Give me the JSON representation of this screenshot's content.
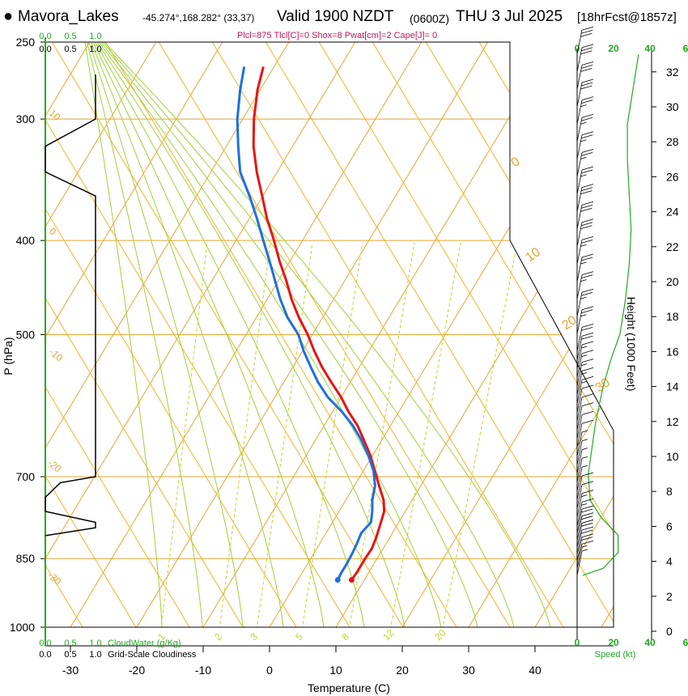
{
  "header": {
    "site": "Mavora_Lakes",
    "coords": "-45.274°,168.282° (33,37)",
    "valid": "Valid 1900 NZDT",
    "valid_utc": "(0600Z)",
    "valid_day": "THU 3 Jul 2025",
    "forecast": "[18hrFcst@1857z]",
    "params": "Plcl=875 Tlcl[C]=0 Shox=8 Pwat[cm]=2 Cape[J]= 0"
  },
  "colors": {
    "temperature": "#e81414",
    "dewpoint": "#1f6fe0",
    "isotherm": "#e6a532",
    "dry_adiabat": "#f0b428",
    "moist_adiabat": "#9fd23a",
    "mixing_ratio": "#bcd62b",
    "cloud_water": "#22aa22",
    "cloudiness": "#000000",
    "height_profile": "#000000",
    "wind_speed": "#22aa22"
  },
  "chart_data": [
    {
      "type": "line",
      "title": "Skew-T log-P sounding",
      "xlabel": "Temperature (C)",
      "ylabel": "P (hPa)",
      "x_ticks": [
        -30,
        -20,
        -10,
        0,
        10,
        20,
        30,
        40
      ],
      "y_ticks": [
        250,
        300,
        400,
        500,
        700,
        850,
        1000
      ],
      "xlim": [
        -34,
        46
      ],
      "ylim": [
        1000,
        250
      ],
      "y_scale": "log",
      "grid": true,
      "isotherm_labels": [
        "0",
        "10",
        "20",
        "30",
        "-10",
        "-20",
        "-30",
        "10",
        "0"
      ],
      "mixing_ratio_labels": [
        "1",
        "2",
        "3",
        "5",
        "8",
        "12",
        "20"
      ],
      "series": [
        {
          "name": "Temperature",
          "points": [
            {
              "p": 894,
              "t": 8.1
            },
            {
              "p": 875,
              "t": 8.2
            },
            {
              "p": 850,
              "t": 8.2
            },
            {
              "p": 830,
              "t": 8.3
            },
            {
              "p": 810,
              "t": 8.0
            },
            {
              "p": 780,
              "t": 7.3
            },
            {
              "p": 760,
              "t": 6.8
            },
            {
              "p": 740,
              "t": 5.7
            },
            {
              "p": 715,
              "t": 3.7
            },
            {
              "p": 690,
              "t": 1.7
            },
            {
              "p": 665,
              "t": -0.4
            },
            {
              "p": 640,
              "t": -2.9
            },
            {
              "p": 620,
              "t": -5.0
            },
            {
              "p": 600,
              "t": -7.6
            },
            {
              "p": 580,
              "t": -10.0
            },
            {
              "p": 560,
              "t": -12.8
            },
            {
              "p": 540,
              "t": -15.6
            },
            {
              "p": 520,
              "t": -18.2
            },
            {
              "p": 500,
              "t": -20.7
            },
            {
              "p": 480,
              "t": -23.6
            },
            {
              "p": 460,
              "t": -26.3
            },
            {
              "p": 440,
              "t": -28.8
            },
            {
              "p": 420,
              "t": -31.6
            },
            {
              "p": 400,
              "t": -34.3
            },
            {
              "p": 380,
              "t": -37.3
            },
            {
              "p": 360,
              "t": -40.1
            },
            {
              "p": 340,
              "t": -43.1
            },
            {
              "p": 320,
              "t": -45.9
            },
            {
              "p": 300,
              "t": -48.3
            },
            {
              "p": 280,
              "t": -50.4
            },
            {
              "p": 265,
              "t": -51.6
            }
          ]
        },
        {
          "name": "Dewpoint",
          "points": [
            {
              "p": 894,
              "t": 6.0
            },
            {
              "p": 880,
              "t": 5.9
            },
            {
              "p": 860,
              "t": 5.9
            },
            {
              "p": 840,
              "t": 5.8
            },
            {
              "p": 820,
              "t": 5.6
            },
            {
              "p": 800,
              "t": 5.3
            },
            {
              "p": 780,
              "t": 5.8
            },
            {
              "p": 760,
              "t": 5.0
            },
            {
              "p": 740,
              "t": 4.0
            },
            {
              "p": 715,
              "t": 3.1
            },
            {
              "p": 690,
              "t": 1.5
            },
            {
              "p": 665,
              "t": -0.7
            },
            {
              "p": 640,
              "t": -3.3
            },
            {
              "p": 620,
              "t": -5.7
            },
            {
              "p": 600,
              "t": -8.6
            },
            {
              "p": 580,
              "t": -12.0
            },
            {
              "p": 560,
              "t": -14.8
            },
            {
              "p": 540,
              "t": -17.3
            },
            {
              "p": 520,
              "t": -19.8
            },
            {
              "p": 500,
              "t": -22.1
            },
            {
              "p": 480,
              "t": -25.3
            },
            {
              "p": 460,
              "t": -28.0
            },
            {
              "p": 440,
              "t": -30.5
            },
            {
              "p": 420,
              "t": -33.1
            },
            {
              "p": 400,
              "t": -35.9
            },
            {
              "p": 380,
              "t": -38.8
            },
            {
              "p": 360,
              "t": -42.0
            },
            {
              "p": 340,
              "t": -45.6
            },
            {
              "p": 320,
              "t": -48.2
            },
            {
              "p": 300,
              "t": -50.8
            },
            {
              "p": 280,
              "t": -53.0
            },
            {
              "p": 265,
              "t": -54.5
            }
          ]
        }
      ]
    },
    {
      "type": "line",
      "title": "Cloud water and grid-scale cloudiness",
      "x_ticks_top": [
        "0.0",
        "0.5",
        "1.0"
      ],
      "x_ticks_bottom": [
        "0.0",
        "0.5",
        "1.0"
      ],
      "labels": [
        "CloudWater (g/Kg)",
        "Grid-Scale Cloudiness"
      ],
      "series": [
        {
          "name": "Grid-Scale Cloudiness",
          "points": [
            {
              "p": 270,
              "v": 1.0
            },
            {
              "p": 300,
              "v": 1.0
            },
            {
              "p": 320,
              "v": 0.0
            },
            {
              "p": 340,
              "v": 0.0
            },
            {
              "p": 360,
              "v": 1.0
            },
            {
              "p": 400,
              "v": 1.0
            },
            {
              "p": 700,
              "v": 1.0
            },
            {
              "p": 710,
              "v": 0.3
            },
            {
              "p": 735,
              "v": 0.0
            },
            {
              "p": 760,
              "v": 0.0
            },
            {
              "p": 780,
              "v": 1.0
            },
            {
              "p": 790,
              "v": 1.0
            },
            {
              "p": 805,
              "v": 0.0
            }
          ]
        }
      ]
    },
    {
      "type": "line",
      "title": "Wind profile",
      "xlabel": "Speed (kt)",
      "ylabel": "Height (1000 Feet)",
      "x_ticks": [
        "0",
        "20",
        "40",
        "6"
      ],
      "height_ticks": [
        "0",
        "2",
        "4",
        "6",
        "8",
        "10",
        "12",
        "14",
        "16",
        "18",
        "20",
        "22",
        "24",
        "26",
        "28",
        "30",
        "32"
      ],
      "series": [
        {
          "name": "Speed",
          "points": [
            {
              "kft": 3.2,
              "kt": 3
            },
            {
              "kft": 3.6,
              "kt": 14
            },
            {
              "kft": 4.5,
              "kt": 22
            },
            {
              "kft": 5.5,
              "kt": 22
            },
            {
              "kft": 6.5,
              "kt": 13
            },
            {
              "kft": 7.5,
              "kt": 7
            },
            {
              "kft": 9,
              "kt": 6
            },
            {
              "kft": 10.5,
              "kt": 8
            },
            {
              "kft": 12,
              "kt": 10
            },
            {
              "kft": 14,
              "kt": 14
            },
            {
              "kft": 15.5,
              "kt": 18
            },
            {
              "kft": 17,
              "kt": 23
            },
            {
              "kft": 19,
              "kt": 26
            },
            {
              "kft": 21,
              "kt": 28
            },
            {
              "kft": 23,
              "kt": 29
            },
            {
              "kft": 25,
              "kt": 28
            },
            {
              "kft": 27,
              "kt": 27
            },
            {
              "kft": 29,
              "kt": 27
            },
            {
              "kft": 31,
              "kt": 30
            },
            {
              "kft": 33,
              "kt": 33
            }
          ]
        }
      ],
      "barbs": [
        {
          "kft": 3.2,
          "kt": 5
        },
        {
          "kft": 3.6,
          "kt": 15
        },
        {
          "kft": 4.0,
          "kt": 20
        },
        {
          "kft": 4.4,
          "kt": 20
        },
        {
          "kft": 4.8,
          "kt": 20
        },
        {
          "kft": 5.2,
          "kt": 20
        },
        {
          "kft": 5.6,
          "kt": 20
        },
        {
          "kft": 6.0,
          "kt": 15
        },
        {
          "kft": 6.5,
          "kt": 15
        },
        {
          "kft": 7.0,
          "kt": 10
        },
        {
          "kft": 7.5,
          "kt": 10
        },
        {
          "kft": 8.0,
          "kt": 5
        },
        {
          "kft": 8.5,
          "kt": 5
        },
        {
          "kft": 9.0,
          "kt": 5
        },
        {
          "kft": 9.5,
          "kt": 5
        },
        {
          "kft": 10.0,
          "kt": 5
        },
        {
          "kft": 10.5,
          "kt": 10
        },
        {
          "kft": 11.0,
          "kt": 10
        },
        {
          "kft": 11.5,
          "kt": 10
        },
        {
          "kft": 12.0,
          "kt": 10
        },
        {
          "kft": 12.5,
          "kt": 10
        },
        {
          "kft": 13.0,
          "kt": 15
        },
        {
          "kft": 13.5,
          "kt": 15
        },
        {
          "kft": 14.0,
          "kt": 15
        },
        {
          "kft": 14.5,
          "kt": 15
        },
        {
          "kft": 15.0,
          "kt": 15
        },
        {
          "kft": 15.5,
          "kt": 20
        },
        {
          "kft": 16.0,
          "kt": 20
        },
        {
          "kft": 17.0,
          "kt": 25
        },
        {
          "kft": 18.0,
          "kt": 25
        },
        {
          "kft": 19.0,
          "kt": 25
        },
        {
          "kft": 20.0,
          "kt": 25
        },
        {
          "kft": 21.0,
          "kt": 25
        },
        {
          "kft": 22.0,
          "kt": 30
        },
        {
          "kft": 23.0,
          "kt": 30
        },
        {
          "kft": 24.0,
          "kt": 30
        },
        {
          "kft": 25.0,
          "kt": 25
        },
        {
          "kft": 26.0,
          "kt": 25
        },
        {
          "kft": 27.0,
          "kt": 25
        },
        {
          "kft": 28.0,
          "kt": 25
        },
        {
          "kft": 29.0,
          "kt": 25
        },
        {
          "kft": 30.0,
          "kt": 30
        },
        {
          "kft": 31.0,
          "kt": 30
        },
        {
          "kft": 32.0,
          "kt": 30
        },
        {
          "kft": 33.0,
          "kt": 30
        }
      ]
    }
  ]
}
